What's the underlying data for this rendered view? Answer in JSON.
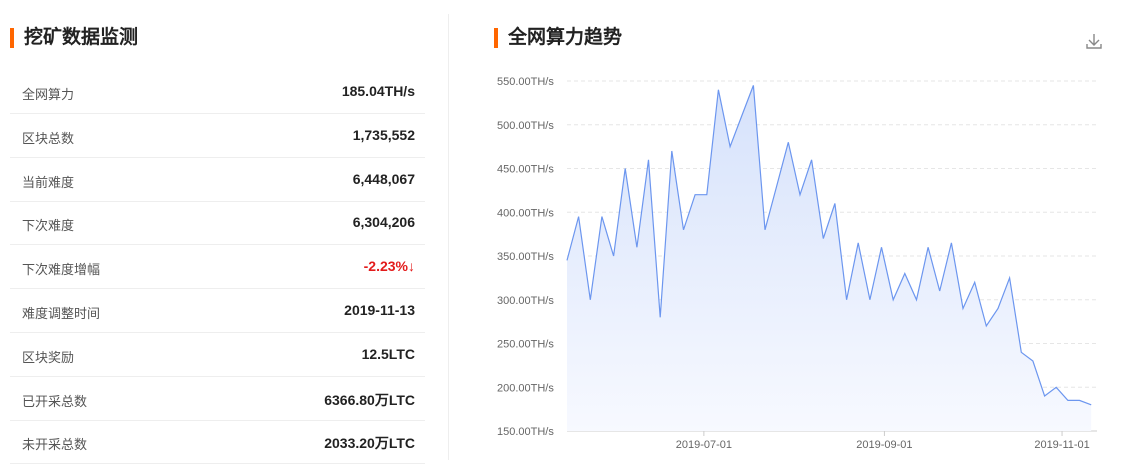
{
  "panel": {
    "title": "挖矿数据监测",
    "rows": [
      {
        "label": "全网算力",
        "value": "185.04TH/s"
      },
      {
        "label": "区块总数",
        "value": "1,735,552"
      },
      {
        "label": "当前难度",
        "value": "6,448,067"
      },
      {
        "label": "下次难度",
        "value": "6,304,206"
      },
      {
        "label": "下次难度增幅",
        "value": "-2.23%↓"
      },
      {
        "label": "难度调整时间",
        "value": "2019-11-13"
      },
      {
        "label": "区块奖励",
        "value": "12.5LTC"
      },
      {
        "label": "已开采总数",
        "value": "6366.80万LTC"
      },
      {
        "label": "未开采总数",
        "value": "2033.20万LTC"
      }
    ]
  },
  "chart_data": {
    "type": "line",
    "title": "全网算力趋势",
    "color": "#6c96ef",
    "grid": true,
    "x": [
      "2019-05-15",
      "2019-05-19",
      "2019-05-23",
      "2019-05-27",
      "2019-05-31",
      "2019-06-04",
      "2019-06-08",
      "2019-06-12",
      "2019-06-16",
      "2019-06-20",
      "2019-06-24",
      "2019-06-28",
      "2019-07-02",
      "2019-07-06",
      "2019-07-10",
      "2019-07-14",
      "2019-07-18",
      "2019-07-22",
      "2019-07-26",
      "2019-07-30",
      "2019-08-03",
      "2019-08-07",
      "2019-08-11",
      "2019-08-15",
      "2019-08-19",
      "2019-08-23",
      "2019-08-27",
      "2019-08-31",
      "2019-09-04",
      "2019-09-08",
      "2019-09-12",
      "2019-09-16",
      "2019-09-20",
      "2019-09-24",
      "2019-09-28",
      "2019-10-02",
      "2019-10-06",
      "2019-10-10",
      "2019-10-14",
      "2019-10-18",
      "2019-10-22",
      "2019-10-26",
      "2019-10-30",
      "2019-11-03",
      "2019-11-07",
      "2019-11-11"
    ],
    "values": [
      345,
      395,
      300,
      395,
      350,
      450,
      360,
      460,
      280,
      470,
      380,
      420,
      420,
      540,
      475,
      510,
      545,
      380,
      430,
      480,
      420,
      460,
      370,
      410,
      300,
      365,
      300,
      360,
      300,
      330,
      300,
      360,
      310,
      365,
      290,
      320,
      270,
      290,
      325,
      240,
      230,
      190,
      200,
      185,
      185,
      180
    ],
    "xlim": [
      "2019-05-15",
      "2019-11-13"
    ],
    "xticks": [
      "2019-07-01",
      "2019-09-01",
      "2019-11-01"
    ],
    "ylim": [
      150,
      550
    ],
    "yticks": [
      {
        "value": 150,
        "label": "150.00TH/s"
      },
      {
        "value": 200,
        "label": "200.00TH/s"
      },
      {
        "value": 250,
        "label": "250.00TH/s"
      },
      {
        "value": 300,
        "label": "300.00TH/s"
      },
      {
        "value": 350,
        "label": "350.00TH/s"
      },
      {
        "value": 400,
        "label": "400.00TH/s"
      },
      {
        "value": 450,
        "label": "450.00TH/s"
      },
      {
        "value": 500,
        "label": "500.00TH/s"
      },
      {
        "value": 550,
        "label": "550.00TH/s"
      }
    ]
  }
}
